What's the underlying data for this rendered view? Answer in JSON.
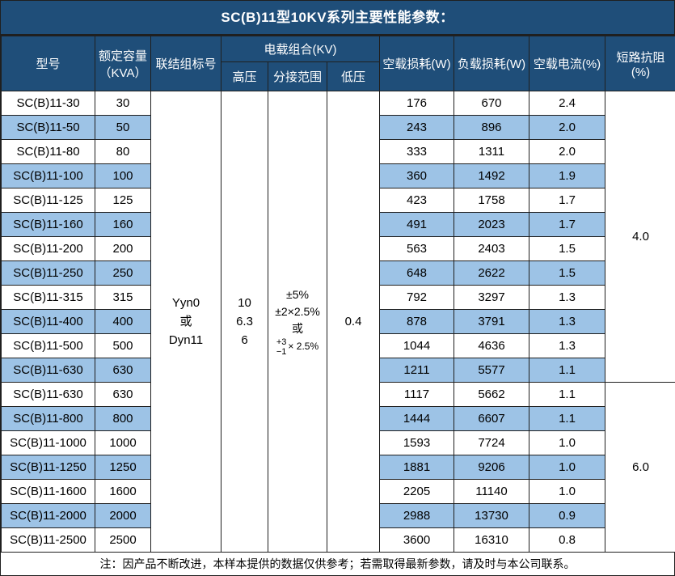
{
  "title": "SC(B)11型10KV系列主要性能参数：",
  "colors": {
    "header_bg": "#1f4e79",
    "stripe_bg": "#9dc3e6",
    "border": "#1f1f1f",
    "header_text": "#ffffff",
    "body_text": "#000000"
  },
  "table": {
    "headers": {
      "model": "型号",
      "capacity_line1": "额定容量",
      "capacity_line2": "（KVA）",
      "vector_group": "联结组标号",
      "voltage_combo": "电载组合(KV)",
      "hv": "高压",
      "tap_range": "分接范围",
      "lv": "低压",
      "no_load_loss": "空载损耗(W)",
      "load_loss": "负载损耗(W)",
      "no_load_current": "空载电流(%)",
      "impedance": "短路抗阻(%)"
    },
    "merged": {
      "vector_group_lines": [
        "Yyn0",
        "或",
        "Dyn11"
      ],
      "hv_lines": [
        "10",
        "6.3",
        "6"
      ],
      "tap_lines": [
        "±5%",
        "±2×2.5%",
        "或"
      ],
      "tap_stack": {
        "plus": "+3",
        "minus": "−1",
        "factor": "× 2.5%"
      },
      "lv": "0.4",
      "impedance_top": "4.0",
      "impedance_top_rows": 12,
      "impedance_bottom": "6.0",
      "impedance_bottom_rows": 7
    },
    "rows": [
      {
        "model": "SC(B)11-30",
        "capacity": "30",
        "no_load_loss": "176",
        "load_loss": "670",
        "no_load_current": "2.4"
      },
      {
        "model": "SC(B)11-50",
        "capacity": "50",
        "no_load_loss": "243",
        "load_loss": "896",
        "no_load_current": "2.0"
      },
      {
        "model": "SC(B)11-80",
        "capacity": "80",
        "no_load_loss": "333",
        "load_loss": "1311",
        "no_load_current": "2.0"
      },
      {
        "model": "SC(B)11-100",
        "capacity": "100",
        "no_load_loss": "360",
        "load_loss": "1492",
        "no_load_current": "1.9"
      },
      {
        "model": "SC(B)11-125",
        "capacity": "125",
        "no_load_loss": "423",
        "load_loss": "1758",
        "no_load_current": "1.7"
      },
      {
        "model": "SC(B)11-160",
        "capacity": "160",
        "no_load_loss": "491",
        "load_loss": "2023",
        "no_load_current": "1.7"
      },
      {
        "model": "SC(B)11-200",
        "capacity": "200",
        "no_load_loss": "563",
        "load_loss": "2403",
        "no_load_current": "1.5"
      },
      {
        "model": "SC(B)11-250",
        "capacity": "250",
        "no_load_loss": "648",
        "load_loss": "2622",
        "no_load_current": "1.5"
      },
      {
        "model": "SC(B)11-315",
        "capacity": "315",
        "no_load_loss": "792",
        "load_loss": "3297",
        "no_load_current": "1.3"
      },
      {
        "model": "SC(B)11-400",
        "capacity": "400",
        "no_load_loss": "878",
        "load_loss": "3791",
        "no_load_current": "1.3"
      },
      {
        "model": "SC(B)11-500",
        "capacity": "500",
        "no_load_loss": "1044",
        "load_loss": "4636",
        "no_load_current": "1.3"
      },
      {
        "model": "SC(B)11-630",
        "capacity": "630",
        "no_load_loss": "1211",
        "load_loss": "5577",
        "no_load_current": "1.1"
      },
      {
        "model": "SC(B)11-630",
        "capacity": "630",
        "no_load_loss": "1117",
        "load_loss": "5662",
        "no_load_current": "1.1"
      },
      {
        "model": "SC(B)11-800",
        "capacity": "800",
        "no_load_loss": "1444",
        "load_loss": "6607",
        "no_load_current": "1.1"
      },
      {
        "model": "SC(B)11-1000",
        "capacity": "1000",
        "no_load_loss": "1593",
        "load_loss": "7724",
        "no_load_current": "1.0"
      },
      {
        "model": "SC(B)11-1250",
        "capacity": "1250",
        "no_load_loss": "1881",
        "load_loss": "9206",
        "no_load_current": "1.0"
      },
      {
        "model": "SC(B)11-1600",
        "capacity": "1600",
        "no_load_loss": "2205",
        "load_loss": "11140",
        "no_load_current": "1.0"
      },
      {
        "model": "SC(B)11-2000",
        "capacity": "2000",
        "no_load_loss": "2988",
        "load_loss": "13730",
        "no_load_current": "0.9"
      },
      {
        "model": "SC(B)11-2500",
        "capacity": "2500",
        "no_load_loss": "3600",
        "load_loss": "16310",
        "no_load_current": "0.8"
      }
    ]
  },
  "footer_note": "注：因产品不断改进，本样本提供的数据仅供参考；若需取得最新参数，请及时与本公司联系。"
}
